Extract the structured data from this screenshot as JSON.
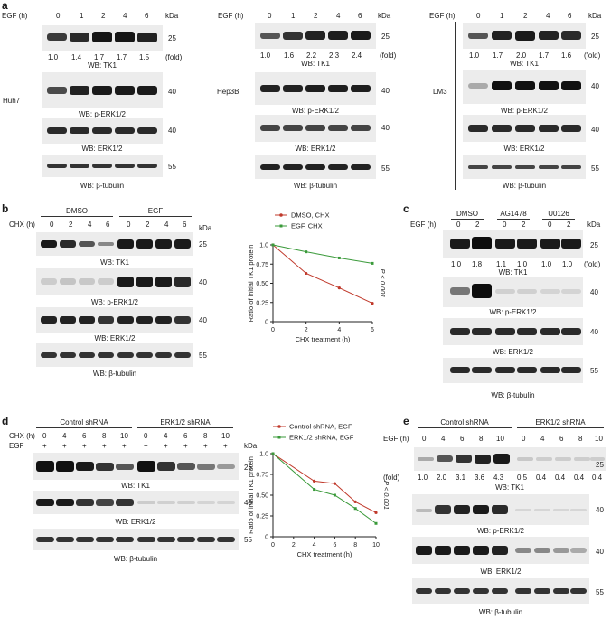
{
  "panel_letters": {
    "a": "a",
    "b": "b",
    "c": "c",
    "d": "d",
    "e": "e"
  },
  "common": {
    "egf_h": "EGF (h)",
    "kda": "kDa",
    "fold": "(fold)",
    "mw25": "25",
    "mw40": "40",
    "mw55": "55",
    "wb_tk1": "WB: TK1",
    "wb_perk": "WB: p-ERK1/2",
    "wb_erk": "WB: ERK1/2",
    "wb_tub": "WB: β-tubulin",
    "t0": "0",
    "t1": "1",
    "t2": "2",
    "t4": "4",
    "t6": "6",
    "t8": "8",
    "t10": "10"
  },
  "panel_a": {
    "cells": [
      "Huh7",
      "Hep3B",
      "LM3"
    ],
    "folds": [
      [
        "1.0",
        "1.4",
        "1.7",
        "1.7",
        "1.5"
      ],
      [
        "1.0",
        "1.6",
        "2.2",
        "2.3",
        "2.4"
      ],
      [
        "1.0",
        "1.7",
        "2.0",
        "1.7",
        "1.6"
      ]
    ]
  },
  "panel_b": {
    "cond_dmso": "DMSO",
    "cond_egf": "EGF",
    "chx_h": "CHX (h)"
  },
  "panel_c": {
    "cond_dmso": "DMSO",
    "cond_ag": "AG1478",
    "cond_uo": "U0126",
    "folds": [
      "1.0",
      "1.8",
      "1.1",
      "1.0",
      "1.0",
      "1.0"
    ]
  },
  "panel_d": {
    "ctrl": "Control shRNA",
    "erk": "ERK1/2 shRNA",
    "chx_h": "CHX (h)",
    "egf": "EGF",
    "plus": "+"
  },
  "panel_e": {
    "ctrl": "Control shRNA",
    "erk": "ERK1/2 shRNA",
    "folds": [
      "1.0",
      "2.0",
      "3.1",
      "3.6",
      "4.3",
      "0.5",
      "0.4",
      "0.4",
      "0.4",
      "0.4"
    ]
  },
  "chart_data": [
    {
      "type": "line",
      "panel": "b",
      "xlabel": "CHX treatment (h)",
      "ylabel": "Ratio of initial TK1 protein",
      "x": [
        0,
        2,
        4,
        6
      ],
      "xlim": [
        0,
        6
      ],
      "ylim": [
        0,
        1.0
      ],
      "xticks": [
        "0",
        "2",
        "4",
        "6"
      ],
      "yticks": [
        "0",
        "0.25",
        "0.50",
        "0.75",
        "1.0"
      ],
      "series": [
        {
          "name": "DMSO, CHX",
          "color": "#c0392b",
          "values": [
            1.0,
            0.63,
            0.44,
            0.24
          ]
        },
        {
          "name": "EGF, CHX",
          "color": "#3a9a3a",
          "values": [
            1.0,
            0.91,
            0.83,
            0.76
          ]
        }
      ],
      "annotation": "P < 0.001",
      "legend": "top"
    },
    {
      "type": "line",
      "panel": "d",
      "xlabel": "CHX treatment (h)",
      "ylabel": "Ratio of initial TK1 protein",
      "x": [
        0,
        4,
        6,
        8,
        10
      ],
      "xlim": [
        0,
        10
      ],
      "ylim": [
        0,
        1.0
      ],
      "xticks": [
        "0",
        "2",
        "4",
        "6",
        "8",
        "10"
      ],
      "yticks": [
        "0",
        "0.25",
        "0.50",
        "0.75",
        "1.0"
      ],
      "series": [
        {
          "name": "Control shRNA, EGF",
          "color": "#c0392b",
          "values": [
            1.0,
            0.67,
            0.64,
            0.42,
            0.29
          ]
        },
        {
          "name": "ERK1/2 shRNA, EGF",
          "color": "#3a9a3a",
          "values": [
            1.0,
            0.57,
            0.5,
            0.34,
            0.16
          ]
        }
      ],
      "annotation": "P < 0.001",
      "legend": "top"
    }
  ]
}
